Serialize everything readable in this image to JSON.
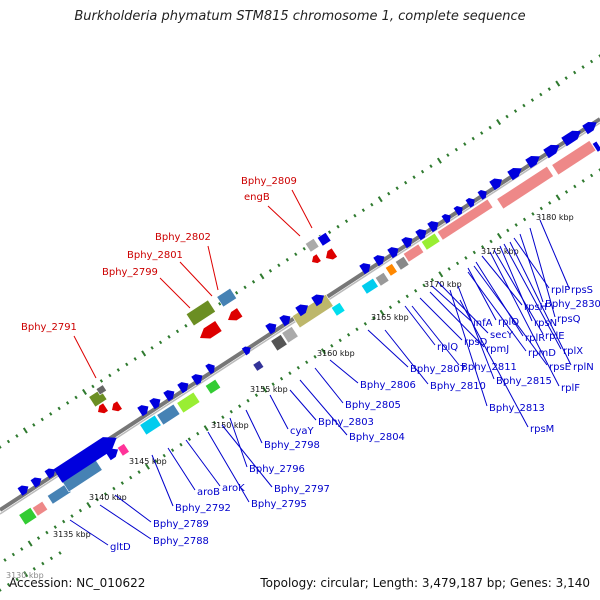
{
  "title": "Burkholderia phymatum STM815 chromosome 1, complete sequence",
  "footer": {
    "accession": "Accession: NC_010622",
    "summary": "Topology: circular; Length: 3,479,187 bp; Genes: 3,140"
  },
  "ticks": [
    "3130 kbp",
    "3135 kbp",
    "3140 kbp",
    "3145 kbp",
    "3150 kbp",
    "3155 kbp",
    "3160 kbp",
    "3165 kbp",
    "3170 kbp",
    "3175 kbp",
    "3180 kbp"
  ],
  "labels_top": [
    {
      "text": "Bphy_2809",
      "color": "#cc0000"
    },
    {
      "text": "engB",
      "color": "#cc0000"
    },
    {
      "text": "Bphy_2802",
      "color": "#cc0000"
    },
    {
      "text": "Bphy_2801",
      "color": "#cc0000"
    },
    {
      "text": "Bphy_2799",
      "color": "#cc0000"
    },
    {
      "text": "Bphy_2791",
      "color": "#cc0000"
    }
  ],
  "labels_bottom": [
    "gltD",
    "Bphy_2788",
    "Bphy_2789",
    "Bphy_2792",
    "aroB",
    "aroK",
    "Bphy_2795",
    "Bphy_2797",
    "Bphy_2796",
    "Bphy_2798",
    "cyaY",
    "Bphy_2804",
    "Bphy_2803",
    "Bphy_2805",
    "Bphy_2806",
    "Bphy_2807",
    "Bphy_2810",
    "rplQ",
    "Bphy_2811",
    "rpsD",
    "rpmJ",
    "infA",
    "secY",
    "rpsM",
    "Bphy_2813",
    "Bphy_2815",
    "rpmD",
    "rplO",
    "rpsE",
    "rplR",
    "rpsH",
    "rplF",
    "rplE",
    "rpsN",
    "rplX",
    "rplN",
    "rplP",
    "Bphy_2830",
    "rpsQ",
    "rpsS"
  ],
  "colors": {
    "backbone": "#7a7a7a",
    "tick": "#2f7a2f",
    "forward": "#0000dd",
    "reverse": "#dd0000",
    "label_blue": "#0000cc",
    "label_red": "#cc0000"
  }
}
